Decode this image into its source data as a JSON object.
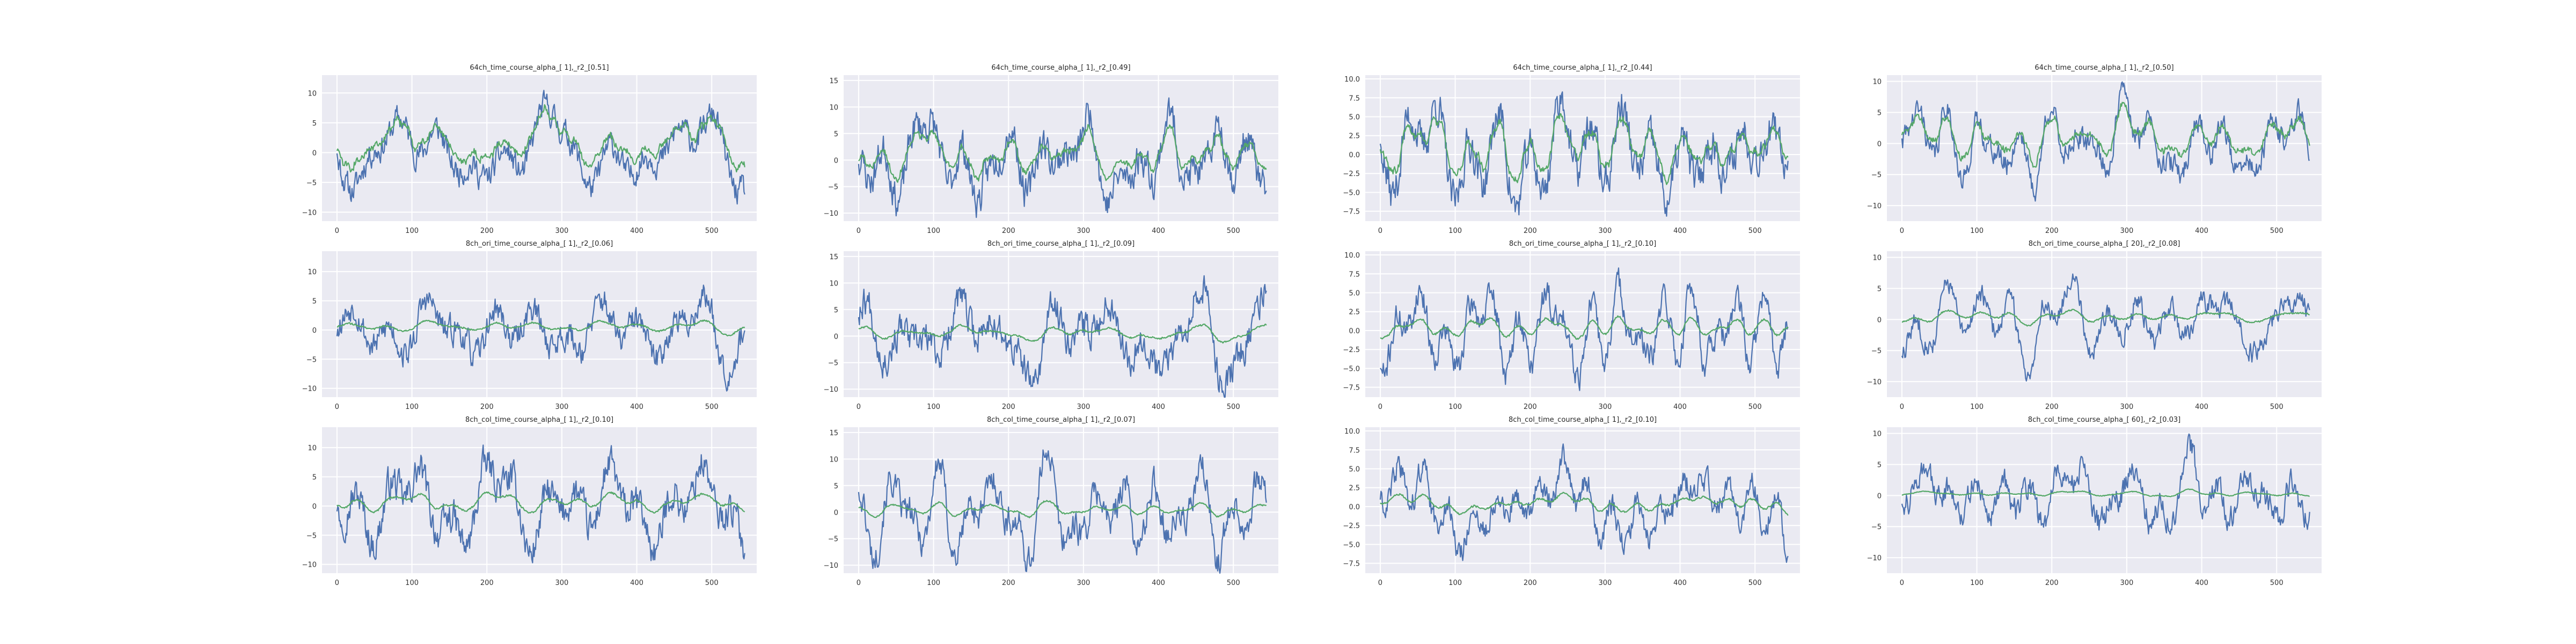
{
  "figure": {
    "background": "#ffffff",
    "axes_background": "#eaeaf2",
    "grid_color": "#ffffff"
  },
  "series_colors": {
    "s1": "#4c72b0",
    "s2": "#55a868"
  },
  "chart_data": [
    {
      "type": "line",
      "title": "64ch_time_course_alpha_[ 1],_r2_[0.51]",
      "xlim": [
        -20,
        560
      ],
      "ylim": [
        -11.5,
        13
      ],
      "xticks": [
        0,
        100,
        200,
        300,
        400,
        500
      ],
      "yticks": [
        -10,
        -5,
        0,
        5,
        10
      ],
      "ytick_labels": [
        "−10",
        "−5",
        "0",
        "5",
        "10"
      ],
      "n_points": 545,
      "seed": 11,
      "amp1": 5.8,
      "amp2": 6.2,
      "smooth2": 3,
      "offset2": 1.5,
      "grid": true
    },
    {
      "type": "line",
      "title": "64ch_time_course_alpha_[ 1],_r2_[0.49]",
      "xlim": [
        -20,
        560
      ],
      "ylim": [
        -11.5,
        16
      ],
      "xticks": [
        0,
        100,
        200,
        300,
        400,
        500
      ],
      "yticks": [
        -10,
        -5,
        0,
        5,
        10,
        15
      ],
      "ytick_labels": [
        "−10",
        "−5",
        "0",
        "5",
        "10",
        "15"
      ],
      "n_points": 545,
      "seed": 23,
      "amp1": 6.5,
      "amp2": 5.6,
      "smooth2": 3,
      "offset2": 1.0,
      "grid": true
    },
    {
      "type": "line",
      "title": "64ch_time_course_alpha_[ 1],_r2_[0.44]",
      "xlim": [
        -20,
        560
      ],
      "ylim": [
        -8.8,
        10.5
      ],
      "xticks": [
        0,
        100,
        200,
        300,
        400,
        500
      ],
      "yticks": [
        -7.5,
        -5,
        -2.5,
        0,
        2.5,
        5,
        7.5,
        10
      ],
      "ytick_labels": [
        "−7.5",
        "−5.0",
        "−2.5",
        "0.0",
        "2.5",
        "5.0",
        "7.5",
        "10.0"
      ],
      "n_points": 545,
      "seed": 37,
      "amp1": 4.6,
      "amp2": 4.5,
      "smooth2": 3,
      "offset2": 0.8,
      "grid": true
    },
    {
      "type": "line",
      "title": "64ch_time_course_alpha_[ 1],_r2_[0.50]",
      "xlim": [
        -20,
        560
      ],
      "ylim": [
        -12.5,
        11
      ],
      "xticks": [
        0,
        100,
        200,
        300,
        400,
        500
      ],
      "yticks": [
        -10,
        -5,
        0,
        5,
        10
      ],
      "ytick_labels": [
        "−10",
        "−5",
        "0",
        "5",
        "10"
      ],
      "n_points": 545,
      "seed": 41,
      "amp1": 5.5,
      "amp2": 5.5,
      "smooth2": 3,
      "offset2": 1.0,
      "grid": true
    },
    {
      "type": "line",
      "title": "8ch_ori_time_course_alpha_[ 1],_r2_[0.06]",
      "xlim": [
        -20,
        560
      ],
      "ylim": [
        -11.5,
        13.5
      ],
      "xticks": [
        0,
        100,
        200,
        300,
        400,
        500
      ],
      "yticks": [
        -10,
        -5,
        0,
        5,
        10
      ],
      "ytick_labels": [
        "−10",
        "−5",
        "0",
        "5",
        "10"
      ],
      "n_points": 545,
      "seed": 53,
      "amp1": 5.8,
      "amp2": 1.6,
      "smooth2": 6,
      "offset2": 0.6,
      "grid": true
    },
    {
      "type": "line",
      "title": "8ch_ori_time_course_alpha_[ 1],_r2_[0.09]",
      "xlim": [
        -20,
        560
      ],
      "ylim": [
        -11.5,
        16
      ],
      "xticks": [
        0,
        100,
        200,
        300,
        400,
        500
      ],
      "yticks": [
        -10,
        -5,
        0,
        5,
        10,
        15
      ],
      "ytick_labels": [
        "−10",
        "−5",
        "0",
        "5",
        "10",
        "15"
      ],
      "n_points": 545,
      "seed": 67,
      "amp1": 6.5,
      "amp2": 1.8,
      "smooth2": 6,
      "offset2": 0.6,
      "grid": true
    },
    {
      "type": "line",
      "title": "8ch_ori_time_course_alpha_[ 1],_r2_[0.10]",
      "xlim": [
        -20,
        560
      ],
      "ylim": [
        -8.8,
        10.5
      ],
      "xticks": [
        0,
        100,
        200,
        300,
        400,
        500
      ],
      "yticks": [
        -7.5,
        -5,
        -2.5,
        0,
        2.5,
        5,
        7.5,
        10
      ],
      "ytick_labels": [
        "−7.5",
        "−5.0",
        "−2.5",
        "0.0",
        "2.5",
        "5.0",
        "7.5",
        "10.0"
      ],
      "n_points": 545,
      "seed": 71,
      "amp1": 4.6,
      "amp2": 1.5,
      "smooth2": 6,
      "offset2": 0.4,
      "grid": true
    },
    {
      "type": "line",
      "title": "8ch_ori_time_course_alpha_[ 20],_r2_[0.08]",
      "xlim": [
        -20,
        560
      ],
      "ylim": [
        -12.5,
        11
      ],
      "xticks": [
        0,
        100,
        200,
        300,
        400,
        500
      ],
      "yticks": [
        -10,
        -5,
        0,
        5,
        10
      ],
      "ytick_labels": [
        "−10",
        "−5",
        "0",
        "5",
        "10"
      ],
      "n_points": 545,
      "seed": 83,
      "amp1": 5.5,
      "amp2": 1.5,
      "smooth2": 8,
      "offset2": 0.5,
      "grid": true
    },
    {
      "type": "line",
      "title": "8ch_col_time_course_alpha_[ 1],_r2_[0.10]",
      "xlim": [
        -20,
        560
      ],
      "ylim": [
        -11.5,
        13.5
      ],
      "xticks": [
        0,
        100,
        200,
        300,
        400,
        500
      ],
      "yticks": [
        -10,
        -5,
        0,
        5,
        10
      ],
      "ytick_labels": [
        "−10",
        "−5",
        "0",
        "5",
        "10"
      ],
      "n_points": 545,
      "seed": 97,
      "amp1": 5.8,
      "amp2": 1.8,
      "smooth2": 6,
      "offset2": 0.6,
      "grid": true
    },
    {
      "type": "line",
      "title": "8ch_col_time_course_alpha_[ 1],_r2_[0.07]",
      "xlim": [
        -20,
        560
      ],
      "ylim": [
        -11.5,
        16
      ],
      "xticks": [
        0,
        100,
        200,
        300,
        400,
        500
      ],
      "yticks": [
        -10,
        -5,
        0,
        5,
        10,
        15
      ],
      "ytick_labels": [
        "−10",
        "−5",
        "0",
        "5",
        "10",
        "15"
      ],
      "n_points": 545,
      "seed": 101,
      "amp1": 6.5,
      "amp2": 1.6,
      "smooth2": 6,
      "offset2": 0.5,
      "grid": true
    },
    {
      "type": "line",
      "title": "8ch_col_time_course_alpha_[ 1],_r2_[0.10]",
      "xlim": [
        -20,
        560
      ],
      "ylim": [
        -8.8,
        10.5
      ],
      "xticks": [
        0,
        100,
        200,
        300,
        400,
        500
      ],
      "yticks": [
        -7.5,
        -5,
        -2.5,
        0,
        2.5,
        5,
        7.5,
        10
      ],
      "ytick_labels": [
        "−7.5",
        "−5.0",
        "−2.5",
        "0.0",
        "2.5",
        "5.0",
        "7.5",
        "10.0"
      ],
      "n_points": 545,
      "seed": 113,
      "amp1": 4.6,
      "amp2": 1.5,
      "smooth2": 6,
      "offset2": 0.4,
      "grid": true
    },
    {
      "type": "line",
      "title": "8ch_col_time_course_alpha_[ 60],_r2_[0.03]",
      "xlim": [
        -20,
        560
      ],
      "ylim": [
        -12.5,
        11
      ],
      "xticks": [
        0,
        100,
        200,
        300,
        400,
        500
      ],
      "yticks": [
        -10,
        -5,
        0,
        5,
        10
      ],
      "ytick_labels": [
        "−10",
        "−5",
        "0",
        "5",
        "10"
      ],
      "n_points": 545,
      "seed": 127,
      "amp1": 5.5,
      "amp2": 0.7,
      "smooth2": 10,
      "offset2": 0.3,
      "grid": true
    }
  ]
}
